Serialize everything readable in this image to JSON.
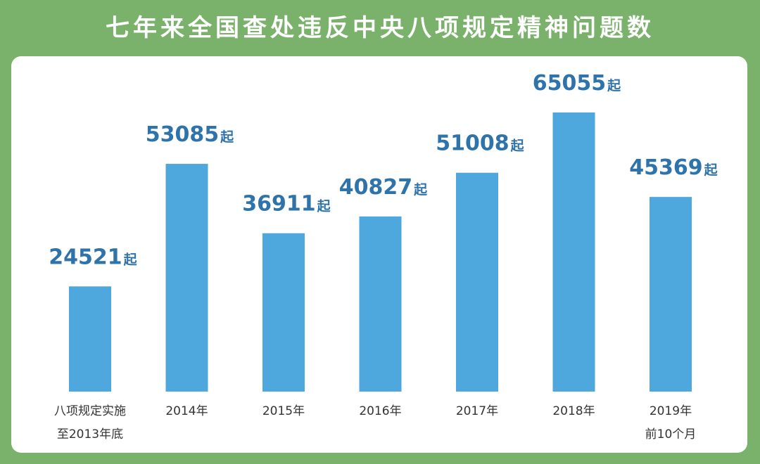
{
  "title": "七年来全国查处违反中央八项规定精神问题数",
  "colors": {
    "background": "#7ab26b",
    "panel": "#ffffff",
    "bar": "#4ea7dd",
    "value_text": "#2f73ab",
    "label_text": "#333333"
  },
  "chart_data": {
    "type": "bar",
    "title": "七年来全国查处违反中央八项规定精神问题数",
    "categories": [
      [
        "八项规定实施",
        "至2013年底"
      ],
      [
        "2014年"
      ],
      [
        "2015年"
      ],
      [
        "2016年"
      ],
      [
        "2017年"
      ],
      [
        "2018年"
      ],
      [
        "2019年",
        "前10个月"
      ]
    ],
    "values": [
      24521,
      53085,
      36911,
      40827,
      51008,
      65055,
      45369
    ],
    "value_unit": "起",
    "xlabel": "",
    "ylabel": "",
    "grid": false,
    "legend": "none"
  }
}
